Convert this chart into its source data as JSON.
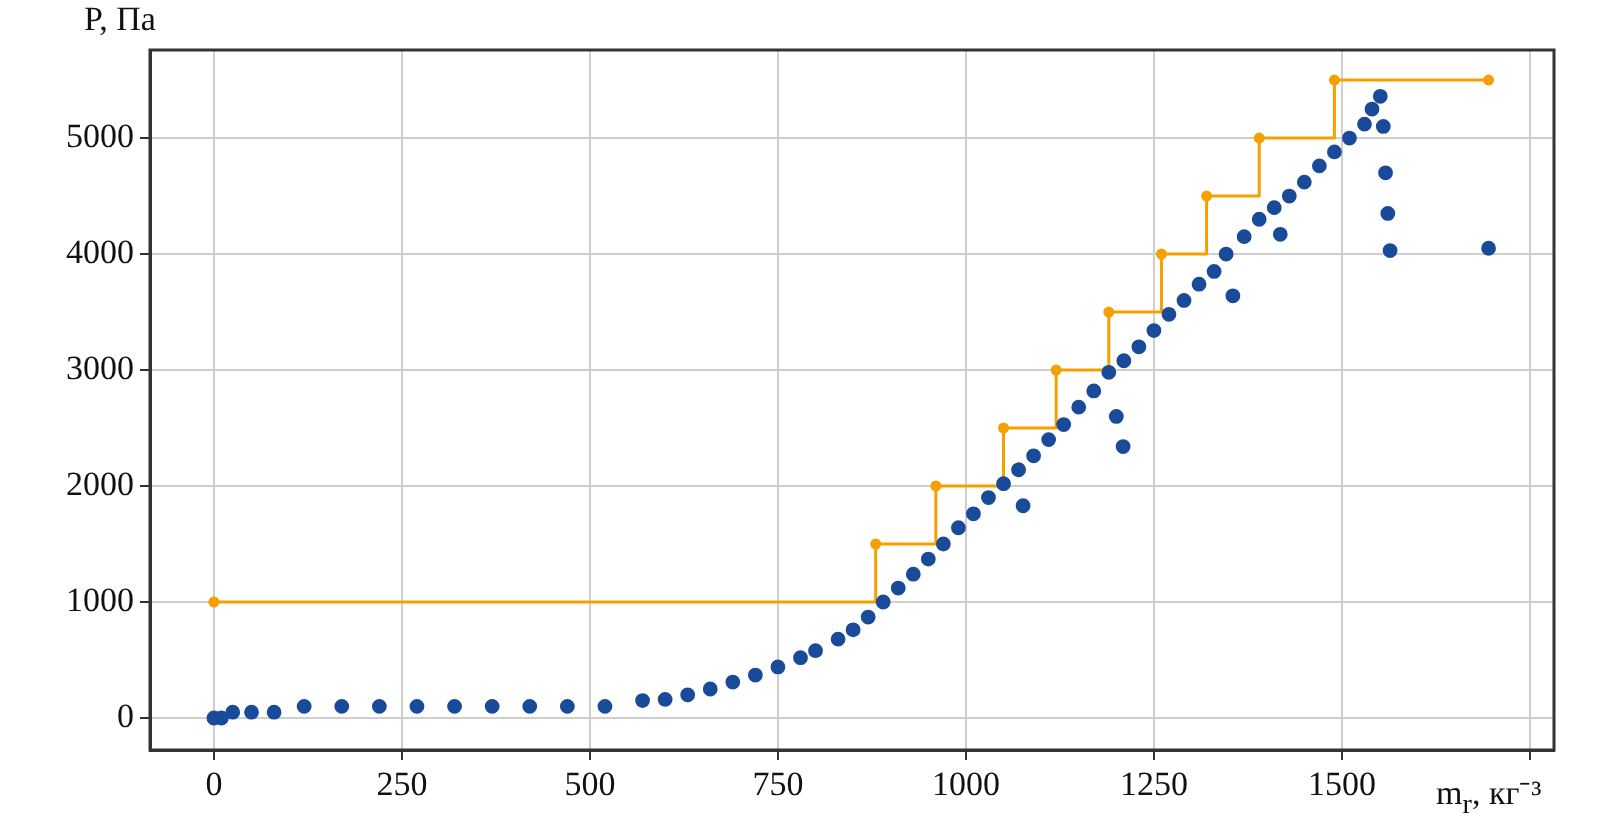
{
  "chart_data": {
    "type": "scatter",
    "xlabel": "m$_{r}$, кг⁻³",
    "ylabel": "P, Па",
    "xlim": [
      -85,
      1782
    ],
    "xticks": [
      0,
      250,
      500,
      750,
      1000,
      1250,
      1500,
      {
        "value": 1750,
        "label": null
      }
    ],
    "ylim": [
      -276,
      5759
    ],
    "yticks": [
      0,
      1000,
      2000,
      3000,
      4000,
      5000
    ],
    "grid": true,
    "legend": false,
    "marker": "circle",
    "series": [
      {
        "type": "step",
        "color": "#f5a000",
        "x": [
          0,
          880,
          960,
          1050,
          1120,
          1190,
          1260,
          1320,
          1390,
          1490,
          1695
        ],
        "values": [
          1000,
          1500,
          2000,
          2500,
          3000,
          3500,
          4000,
          4500,
          5000,
          5500,
          5500
        ]
      },
      {
        "color": "#1a4a9a",
        "x": [
          0,
          10,
          25,
          50,
          80,
          120,
          170,
          220,
          270,
          320,
          370,
          420,
          470,
          520,
          570,
          600,
          630,
          660,
          690,
          720,
          750,
          780,
          800,
          830,
          850,
          870,
          890,
          910,
          930,
          950,
          970,
          990,
          1010,
          1030,
          1050,
          1070,
          1076,
          1090,
          1110,
          1130,
          1150,
          1170,
          1190,
          1200,
          1209,
          1210,
          1230,
          1250,
          1270,
          1290,
          1310,
          1330,
          1346,
          1355,
          1370,
          1390,
          1410,
          1418,
          1430,
          1450,
          1470,
          1490,
          1510,
          1530,
          1540,
          1551,
          1555,
          1558,
          1561,
          1564,
          1695
        ],
        "values": [
          0,
          0,
          50,
          50,
          50,
          100,
          100,
          100,
          100,
          100,
          100,
          100,
          100,
          100,
          150,
          160,
          200,
          250,
          310,
          370,
          440,
          520,
          580,
          680,
          760,
          870,
          1000,
          1120,
          1240,
          1370,
          1500,
          1640,
          1760,
          1900,
          2020,
          2140,
          1830,
          2260,
          2400,
          2530,
          2680,
          2820,
          2980,
          2600,
          2340,
          3080,
          3200,
          3340,
          3480,
          3600,
          3740,
          3850,
          4000,
          3640,
          4150,
          4300,
          4400,
          4170,
          4500,
          4620,
          4760,
          4880,
          5000,
          5120,
          5250,
          5360,
          5100,
          4700,
          4350,
          4030,
          4050
        ]
      }
    ]
  }
}
